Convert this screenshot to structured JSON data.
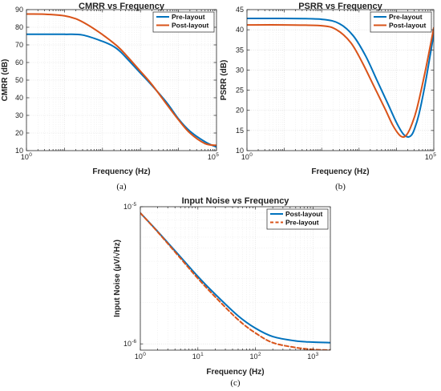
{
  "colors": {
    "pre": "#0072BD",
    "post": "#D95319"
  },
  "chart_data": [
    {
      "id": "a",
      "type": "line",
      "title": "CMRR vs Frequency",
      "xlabel": "Frequency (Hz)",
      "ylabel": "CMRR (dB)",
      "xscale": "log",
      "xlim": [
        1,
        100000
      ],
      "ylim": [
        10,
        90
      ],
      "yticks": [
        10,
        20,
        30,
        40,
        50,
        60,
        70,
        80,
        90
      ],
      "xticks": [
        {
          "base": "10",
          "exp": "0"
        },
        {
          "base": "10",
          "exp": "5"
        }
      ],
      "grid": true,
      "legend": "top-right",
      "caption": "(a)",
      "series": [
        {
          "name": "Pre-layout",
          "color": "#0072BD",
          "dashed": false,
          "x": [
            1,
            3,
            10,
            30,
            100,
            200,
            300,
            500,
            1000,
            2000,
            5000,
            10000,
            20000,
            50000,
            100000
          ],
          "y": [
            76,
            76,
            76,
            75.6,
            72,
            69,
            66,
            61,
            54,
            47,
            37,
            28,
            21,
            15,
            12
          ]
        },
        {
          "name": "Post-layout",
          "color": "#D95319",
          "dashed": false,
          "x": [
            1,
            3,
            10,
            20,
            40,
            80,
            150,
            300,
            1000,
            2000,
            5000,
            10000,
            20000,
            50000,
            100000
          ],
          "y": [
            87.5,
            87.4,
            86.5,
            84.8,
            81.5,
            77.3,
            73,
            67.5,
            55,
            47.5,
            36,
            27.5,
            20,
            14,
            13
          ]
        }
      ]
    },
    {
      "id": "b",
      "type": "line",
      "title": "PSRR vs Frequency",
      "xlabel": "Frequency (Hz)",
      "ylabel": "PSRR (dB)",
      "xscale": "log",
      "xlim": [
        1,
        100000
      ],
      "ylim": [
        10,
        45
      ],
      "yticks": [
        10,
        15,
        20,
        25,
        30,
        35,
        40,
        45
      ],
      "xticks": [
        {
          "base": "10",
          "exp": "0"
        },
        {
          "base": "10",
          "exp": "5"
        }
      ],
      "grid": true,
      "legend": "top-right",
      "caption": "(b)",
      "series": [
        {
          "name": "Pre-layout",
          "color": "#0072BD",
          "dashed": false,
          "x": [
            1,
            10,
            100,
            300,
            700,
            1500,
            3000,
            6000,
            10000,
            15000,
            20000,
            25000,
            30000,
            40000,
            60000,
            100000
          ],
          "y": [
            42.8,
            42.8,
            42.6,
            41.5,
            38.5,
            33.5,
            27.5,
            21.5,
            17,
            14.2,
            13.4,
            13.8,
            15.2,
            19,
            27,
            39
          ]
        },
        {
          "name": "Post-layout",
          "color": "#D95319",
          "dashed": false,
          "x": [
            1,
            10,
            100,
            250,
            600,
            1200,
            2500,
            5000,
            8000,
            12000,
            16000,
            20000,
            25000,
            35000,
            60000,
            100000
          ],
          "y": [
            41.2,
            41.2,
            41,
            40,
            36.8,
            32,
            26,
            20.3,
            16.3,
            13.9,
            13.4,
            14.3,
            16.2,
            20.3,
            30,
            40.5
          ]
        }
      ]
    },
    {
      "id": "c",
      "type": "line",
      "title": "Input Noise vs Frequency",
      "xlabel": "Frequency (Hz)",
      "ylabel": "Input Noise (µV/√Hz)",
      "xscale": "log",
      "yscale": "log",
      "xlim": [
        1,
        2000
      ],
      "ylim": [
        9e-07,
        1e-05
      ],
      "xticks": [
        {
          "base": "10",
          "exp": "0"
        },
        {
          "base": "10",
          "exp": "1"
        },
        {
          "base": "10",
          "exp": "2"
        },
        {
          "base": "10",
          "exp": "3"
        }
      ],
      "yticks": [
        {
          "base": "10",
          "exp": "-6",
          "value": 1e-06
        },
        {
          "base": "10",
          "exp": "-5",
          "value": 1e-05
        }
      ],
      "grid": true,
      "legend": "top-right",
      "caption": "(c)",
      "series": [
        {
          "name": "Post-layout",
          "color": "#0072BD",
          "dashed": false,
          "x": [
            1,
            2,
            5,
            10,
            20,
            50,
            100,
            200,
            500,
            1000,
            2000
          ],
          "y": [
            9e-06,
            6.6e-06,
            4.3e-06,
            3.1e-06,
            2.3e-06,
            1.6e-06,
            1.3e-06,
            1.13e-06,
            1.05e-06,
            1.03e-06,
            1.02e-06
          ]
        },
        {
          "name": "Pre-layout",
          "color": "#D95319",
          "dashed": true,
          "x": [
            1,
            2,
            5,
            10,
            20,
            50,
            100,
            200,
            500,
            1000,
            2000
          ],
          "y": [
            9e-06,
            6.55e-06,
            4.2e-06,
            3e-06,
            2.2e-06,
            1.5e-06,
            1.2e-06,
            1.02e-06,
            9.4e-07,
            9.1e-07,
            9e-07
          ]
        }
      ]
    }
  ]
}
